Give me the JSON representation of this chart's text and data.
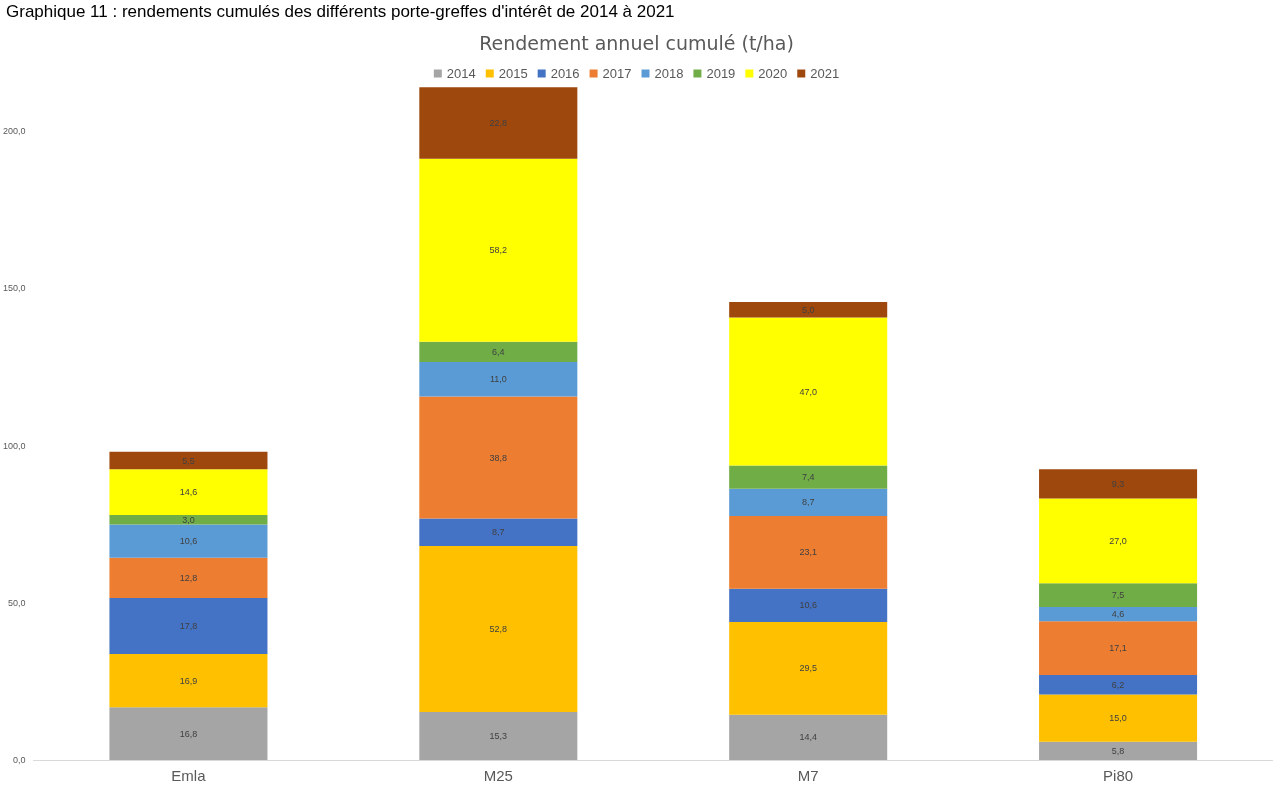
{
  "chart_data": {
    "type": "bar",
    "stacked": true,
    "title": "Rendement annuel cumulé (t/ha)",
    "annotations": [
      "Graphique 11 : rendements cumulés des différents porte-greffes d'intérêt de 2014 à 2021"
    ],
    "categories": [
      "Emla",
      "M25",
      "M7",
      "Pi80"
    ],
    "ylim": [
      0,
      215
    ],
    "yticks": [
      {
        "value": 0,
        "label": "0,0"
      },
      {
        "value": 50,
        "label": "50,0"
      },
      {
        "value": 100,
        "label": "100,0"
      },
      {
        "value": 150,
        "label": "150,0"
      },
      {
        "value": 200,
        "label": "200,0"
      }
    ],
    "grid": false,
    "legend": "top",
    "series": [
      {
        "name": "2014",
        "color": "#a5a5a5",
        "values": [
          16.8,
          15.3,
          14.4,
          5.8
        ],
        "value_labels": [
          "16,8",
          "15,3",
          "14,4",
          "5,8"
        ]
      },
      {
        "name": "2015",
        "color": "#ffc000",
        "values": [
          16.9,
          52.8,
          29.5,
          15.0
        ],
        "value_labels": [
          "16,9",
          "52,8",
          "29,5",
          "15,0"
        ]
      },
      {
        "name": "2016",
        "color": "#4472c4",
        "values": [
          17.8,
          8.7,
          10.6,
          6.2
        ],
        "value_labels": [
          "17,8",
          "8,7",
          "10,6",
          "6,2"
        ]
      },
      {
        "name": "2017",
        "color": "#ed7d31",
        "values": [
          12.8,
          38.8,
          23.1,
          17.1
        ],
        "value_labels": [
          "12,8",
          "38,8",
          "23,1",
          "17,1"
        ]
      },
      {
        "name": "2018",
        "color": "#5b9bd5",
        "values": [
          10.6,
          11.0,
          8.7,
          4.6
        ],
        "value_labels": [
          "10,6",
          "11,0",
          "8,7",
          "4,6"
        ]
      },
      {
        "name": "2019",
        "color": "#70ad47",
        "values": [
          3.0,
          6.4,
          7.4,
          7.5
        ],
        "value_labels": [
          "3,0",
          "6,4",
          "7,4",
          "7,5"
        ]
      },
      {
        "name": "2020",
        "color": "#ffff00",
        "values": [
          14.6,
          58.2,
          47.0,
          27.0
        ],
        "value_labels": [
          "14,6",
          "58,2",
          "47,0",
          "27,0"
        ]
      },
      {
        "name": "2021",
        "color": "#9e480e",
        "values": [
          5.5,
          22.8,
          5.0,
          9.3
        ],
        "value_labels": [
          "5,5",
          "22,8",
          "5,0",
          "9,3"
        ]
      }
    ]
  }
}
